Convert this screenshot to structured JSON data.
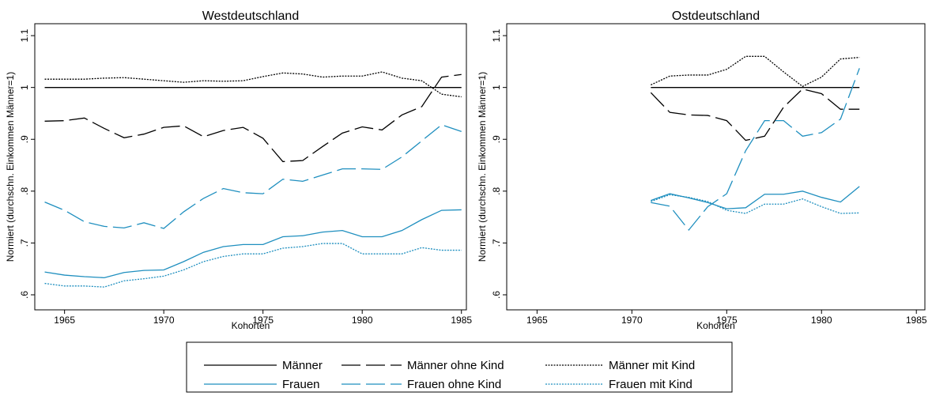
{
  "chart_data": [
    {
      "type": "line",
      "title": "Westdeutschland",
      "xlabel": "Kohorten",
      "ylabel": "Normiert (durchschn. Einkommen Männer=1)",
      "x": [
        1964,
        1965,
        1966,
        1967,
        1968,
        1969,
        1970,
        1971,
        1972,
        1973,
        1974,
        1975,
        1976,
        1977,
        1978,
        1979,
        1980,
        1981,
        1982,
        1983,
        1984,
        1985
      ],
      "series": [
        {
          "name": "Männer",
          "color": "#000000",
          "dash": "solid",
          "values": [
            1,
            1,
            1,
            1,
            1,
            1,
            1,
            1,
            1,
            1,
            1,
            1,
            1,
            1,
            1,
            1,
            1,
            1,
            1,
            1,
            1,
            1
          ]
        },
        {
          "name": "Männer ohne Kind",
          "color": "#000000",
          "dash": "long-dash",
          "values": [
            0.935,
            0.936,
            0.941,
            0.921,
            0.903,
            0.91,
            0.923,
            0.926,
            0.905,
            0.917,
            0.923,
            0.902,
            0.857,
            0.859,
            0.886,
            0.912,
            0.924,
            0.918,
            0.947,
            0.963,
            1.02,
            1.025
          ]
        },
        {
          "name": "Männer mit Kind",
          "color": "#000000",
          "dash": "dot",
          "values": [
            1.016,
            1.016,
            1.016,
            1.018,
            1.019,
            1.016,
            1.013,
            1.01,
            1.013,
            1.012,
            1.013,
            1.021,
            1.028,
            1.026,
            1.02,
            1.022,
            1.022,
            1.03,
            1.018,
            1.013,
            0.987,
            0.982
          ]
        },
        {
          "name": "Frauen",
          "color": "#1f8fbf",
          "dash": "solid",
          "values": [
            0.644,
            0.638,
            0.635,
            0.633,
            0.643,
            0.647,
            0.648,
            0.664,
            0.682,
            0.693,
            0.697,
            0.697,
            0.712,
            0.714,
            0.721,
            0.724,
            0.712,
            0.712,
            0.724,
            0.745,
            0.763,
            0.764
          ]
        },
        {
          "name": "Frauen ohne Kind",
          "color": "#1f8fbf",
          "dash": "long-dash",
          "values": [
            0.779,
            0.763,
            0.741,
            0.732,
            0.729,
            0.739,
            0.728,
            0.76,
            0.786,
            0.805,
            0.797,
            0.795,
            0.823,
            0.819,
            0.831,
            0.843,
            0.843,
            0.842,
            0.866,
            0.897,
            0.928,
            0.915
          ]
        },
        {
          "name": "Frauen mit Kind",
          "color": "#1f8fbf",
          "dash": "dot",
          "values": [
            0.622,
            0.617,
            0.617,
            0.615,
            0.627,
            0.631,
            0.636,
            0.648,
            0.664,
            0.674,
            0.679,
            0.679,
            0.69,
            0.693,
            0.699,
            0.699,
            0.679,
            0.679,
            0.679,
            0.691,
            0.686,
            0.686
          ]
        }
      ],
      "xlim": [
        1963.5,
        1985.25
      ],
      "ylim": [
        0.571,
        1.123
      ],
      "xticks": [
        1965,
        1970,
        1975,
        1980,
        1985
      ],
      "yticks": [
        {
          "value": 0.6,
          "label": ".6"
        },
        {
          "value": 0.7,
          "label": ".7"
        },
        {
          "value": 0.8,
          "label": ".8"
        },
        {
          "value": 0.9,
          "label": ".9"
        },
        1,
        1.1
      ]
    },
    {
      "type": "line",
      "title": "Ostdeutschland",
      "xlabel": "Kohorten",
      "ylabel": "Normiert (durchschn. Einkommen Männer=1)",
      "x": [
        1971,
        1972,
        1973,
        1974,
        1975,
        1976,
        1977,
        1978,
        1979,
        1980,
        1981,
        1982
      ],
      "series": [
        {
          "color": "#000000",
          "dash": "solid",
          "values": [
            1,
            1,
            1,
            1,
            1,
            1,
            1,
            1,
            1,
            1,
            1,
            1
          ]
        },
        {
          "color": "#000000",
          "dash": "long-dash",
          "values": [
            0.99,
            0.952,
            0.947,
            0.946,
            0.936,
            0.898,
            0.906,
            0.962,
            0.997,
            0.988,
            0.958,
            0.958
          ]
        },
        {
          "color": "#000000",
          "dash": "dot",
          "values": [
            1.005,
            1.022,
            1.024,
            1.024,
            1.035,
            1.06,
            1.06,
            1.03,
            1.002,
            1.02,
            1.055,
            1.058
          ]
        },
        {
          "color": "#1f8fbf",
          "dash": "solid",
          "values": [
            0.782,
            0.795,
            0.787,
            0.778,
            0.766,
            0.768,
            0.794,
            0.794,
            0.8,
            0.788,
            0.779,
            0.809
          ]
        },
        {
          "color": "#1f8fbf",
          "dash": "long-dash",
          "values": [
            0.778,
            0.771,
            0.725,
            0.77,
            0.795,
            0.878,
            0.936,
            0.936,
            0.906,
            0.913,
            0.939,
            1.037
          ]
        },
        {
          "color": "#1f8fbf",
          "dash": "dot",
          "values": [
            0.78,
            0.793,
            0.788,
            0.78,
            0.763,
            0.757,
            0.775,
            0.775,
            0.785,
            0.77,
            0.757,
            0.758
          ]
        }
      ],
      "xlim": [
        1963.4,
        1985.45
      ],
      "ylim": [
        0.571,
        1.123
      ],
      "xticks": [
        1965,
        1970,
        1975,
        1980,
        1985
      ],
      "yticks": [
        {
          "value": 0.6,
          "label": ".6"
        },
        {
          "value": 0.7,
          "label": ".7"
        },
        {
          "value": 0.8,
          "label": ".8"
        },
        {
          "value": 0.9,
          "label": ".9"
        },
        1,
        1.1
      ]
    }
  ]
}
